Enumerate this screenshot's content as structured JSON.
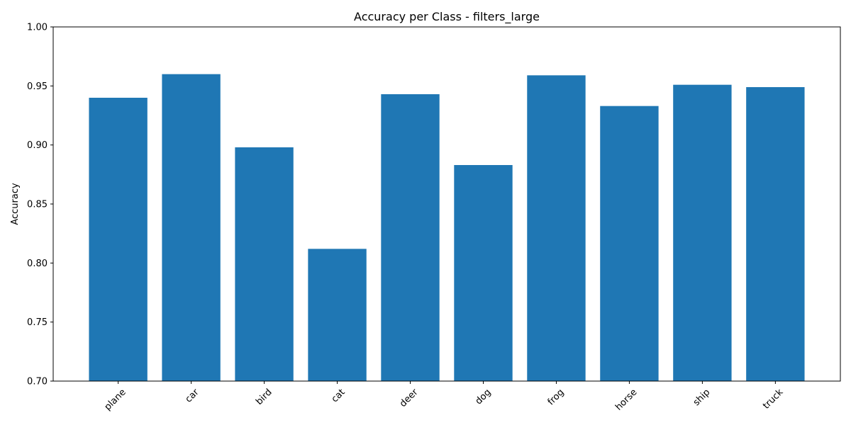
{
  "chart_data": {
    "type": "bar",
    "title": "Accuracy per Class - filters_large",
    "xlabel": "",
    "ylabel": "Accuracy",
    "categories": [
      "plane",
      "car",
      "bird",
      "cat",
      "deer",
      "dog",
      "frog",
      "horse",
      "ship",
      "truck"
    ],
    "values": [
      0.94,
      0.96,
      0.898,
      0.812,
      0.943,
      0.883,
      0.959,
      0.933,
      0.951,
      0.949
    ],
    "ylim": [
      0.7,
      1.0
    ],
    "yticks": [
      "0.70",
      "0.75",
      "0.80",
      "0.85",
      "0.90",
      "0.95",
      "1.00"
    ],
    "grid": false,
    "bar_color": "#1f77b4",
    "xtick_rotation_deg": 45
  }
}
